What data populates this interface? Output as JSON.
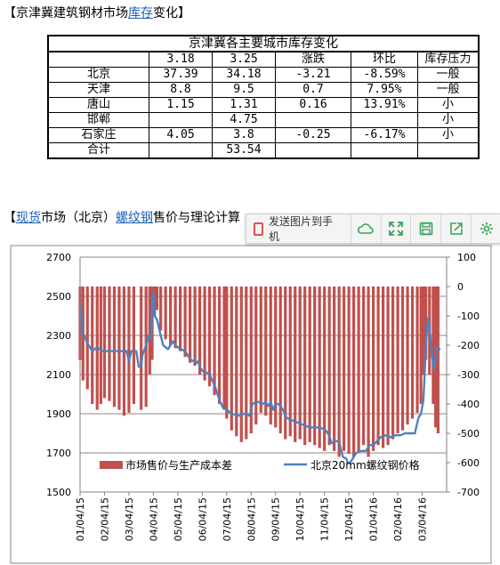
{
  "heading1": {
    "prefix": "【京津冀建筑钢材市场",
    "link": "库存",
    "suffix": "变化】"
  },
  "table": {
    "title": "京津冀各主要城市库存变化",
    "headers": [
      "",
      "3.18",
      "3.25",
      "涨跌",
      "环比",
      "库存压力"
    ],
    "rows": [
      [
        "北京",
        "37.39",
        "34.18",
        "-3.21",
        "-8.59%",
        "一般"
      ],
      [
        "天津",
        "8.8",
        "9.5",
        "0.7",
        "7.95%",
        "一般"
      ],
      [
        "唐山",
        "1.15",
        "1.31",
        "0.16",
        "13.91%",
        "小"
      ],
      [
        "邯郸",
        "",
        "4.75",
        "",
        "",
        "小"
      ],
      [
        "石家庄",
        "4.05",
        "3.8",
        "-0.25",
        "-6.17%",
        "小"
      ],
      [
        "合计",
        "",
        "53.54",
        "",
        "",
        ""
      ]
    ]
  },
  "heading2": {
    "p1": "【",
    "l1": "现货",
    "p2": "市场（北京）",
    "l2": "螺纹钢",
    "p3": "售价与理论计算"
  },
  "toolbar": {
    "send_label": "发送图片到手机",
    "icons": [
      "cloud-icon",
      "fullscreen-icon",
      "save-icon",
      "share-icon",
      "settings-icon"
    ]
  },
  "chart_data": {
    "type": "bar-line-combo",
    "x_ticks": [
      "01/04/15",
      "02/04/15",
      "03/04/15",
      "04/04/15",
      "05/04/15",
      "06/04/15",
      "07/04/15",
      "08/04/15",
      "09/04/15",
      "10/04/15",
      "11/04/15",
      "12/04/15",
      "01/04/16",
      "02/04/16",
      "03/04/16"
    ],
    "y_left": {
      "ylim": [
        1500,
        2700
      ],
      "ticks": [
        2700,
        2500,
        2300,
        2100,
        1900,
        1700,
        1500
      ]
    },
    "y_right": {
      "ylim": [
        -700,
        100
      ],
      "ticks": [
        100,
        0,
        -100,
        -200,
        -300,
        -400,
        -500,
        -600,
        -700
      ]
    },
    "bar_series": {
      "name": "市场售价与生产成本差",
      "color": "#c0504d",
      "axis": "right",
      "points": [
        [
          0,
          -250
        ],
        [
          0.12,
          -320
        ],
        [
          0.3,
          -350
        ],
        [
          0.5,
          -400
        ],
        [
          0.7,
          -420
        ],
        [
          0.85,
          -400
        ],
        [
          1,
          -380
        ],
        [
          1.2,
          -390
        ],
        [
          1.4,
          -410
        ],
        [
          1.6,
          -420
        ],
        [
          1.8,
          -440
        ],
        [
          2,
          -430
        ],
        [
          2.2,
          -400
        ],
        [
          2.5,
          -420
        ],
        [
          2.7,
          -410
        ],
        [
          2.85,
          -300
        ],
        [
          2.95,
          -250
        ],
        [
          3.05,
          -100
        ],
        [
          3.15,
          -80
        ],
        [
          3.3,
          -150
        ],
        [
          3.5,
          -180
        ],
        [
          3.7,
          -200
        ],
        [
          3.9,
          -210
        ],
        [
          4.1,
          -220
        ],
        [
          4.3,
          -240
        ],
        [
          4.5,
          -260
        ],
        [
          4.7,
          -270
        ],
        [
          4.9,
          -300
        ],
        [
          5.1,
          -320
        ],
        [
          5.3,
          -340
        ],
        [
          5.5,
          -370
        ],
        [
          5.7,
          -400
        ],
        [
          5.9,
          -420
        ],
        [
          6,
          -450
        ],
        [
          6.2,
          -490
        ],
        [
          6.4,
          -510
        ],
        [
          6.6,
          -530
        ],
        [
          6.8,
          -520
        ],
        [
          7,
          -500
        ],
        [
          7.2,
          -470
        ],
        [
          7.4,
          -430
        ],
        [
          7.6,
          -440
        ],
        [
          7.8,
          -470
        ],
        [
          8,
          -480
        ],
        [
          8.2,
          -500
        ],
        [
          8.4,
          -520
        ],
        [
          8.6,
          -510
        ],
        [
          8.8,
          -530
        ],
        [
          9,
          -520
        ],
        [
          9.2,
          -540
        ],
        [
          9.4,
          -530
        ],
        [
          9.6,
          -540
        ],
        [
          9.8,
          -550
        ],
        [
          10,
          -560
        ],
        [
          10.2,
          -540
        ],
        [
          10.4,
          -560
        ],
        [
          10.6,
          -580
        ],
        [
          10.8,
          -560
        ],
        [
          11,
          -570
        ],
        [
          11.2,
          -580
        ],
        [
          11.4,
          -560
        ],
        [
          11.6,
          -540
        ],
        [
          11.8,
          -580
        ],
        [
          12,
          -560
        ],
        [
          12.2,
          -540
        ],
        [
          12.4,
          -550
        ],
        [
          12.6,
          -540
        ],
        [
          12.8,
          -520
        ],
        [
          13,
          -500
        ],
        [
          13.2,
          -490
        ],
        [
          13.4,
          -470
        ],
        [
          13.6,
          -450
        ],
        [
          13.8,
          -430
        ],
        [
          13.95,
          -400
        ],
        [
          14.05,
          -300
        ],
        [
          14.15,
          -250
        ],
        [
          14.3,
          -300
        ],
        [
          14.45,
          -400
        ],
        [
          14.55,
          -480
        ],
        [
          14.65,
          -500
        ]
      ]
    },
    "line_series": {
      "name": "北京20mm螺纹钢价格",
      "color": "#4f81bd",
      "axis": "left",
      "points": [
        [
          0,
          2400
        ],
        [
          0.02,
          2460
        ],
        [
          0.1,
          2320
        ],
        [
          0.3,
          2260
        ],
        [
          0.5,
          2220
        ],
        [
          0.7,
          2240
        ],
        [
          0.9,
          2220
        ],
        [
          1.1,
          2220
        ],
        [
          1.5,
          2220
        ],
        [
          1.9,
          2220
        ],
        [
          2,
          2170
        ],
        [
          2.1,
          2220
        ],
        [
          2.3,
          2220
        ],
        [
          2.4,
          2140
        ],
        [
          2.5,
          2140
        ],
        [
          2.55,
          2200
        ],
        [
          2.7,
          2250
        ],
        [
          2.8,
          2300
        ],
        [
          2.9,
          2280
        ],
        [
          2.95,
          2460
        ],
        [
          3.0,
          2520
        ],
        [
          3.05,
          2400
        ],
        [
          3.15,
          2380
        ],
        [
          3.3,
          2300
        ],
        [
          3.4,
          2250
        ],
        [
          3.5,
          2240
        ],
        [
          3.6,
          2230
        ],
        [
          3.7,
          2250
        ],
        [
          3.8,
          2270
        ],
        [
          3.9,
          2250
        ],
        [
          4.0,
          2240
        ],
        [
          4.1,
          2230
        ],
        [
          4.3,
          2220
        ],
        [
          4.5,
          2180
        ],
        [
          4.6,
          2170
        ],
        [
          4.7,
          2170
        ],
        [
          4.8,
          2160
        ],
        [
          4.85,
          2170
        ],
        [
          4.9,
          2140
        ],
        [
          5.0,
          2120
        ],
        [
          5.1,
          2110
        ],
        [
          5.2,
          2110
        ],
        [
          5.3,
          2100
        ],
        [
          5.45,
          2060
        ],
        [
          5.55,
          2030
        ],
        [
          5.7,
          1970
        ],
        [
          5.85,
          1930
        ],
        [
          6,
          1920
        ],
        [
          6.2,
          1900
        ],
        [
          6.5,
          1890
        ],
        [
          6.7,
          1900
        ],
        [
          6.9,
          1890
        ],
        [
          7.0,
          1910
        ],
        [
          7.05,
          1950
        ],
        [
          7.2,
          1960
        ],
        [
          7.3,
          1960
        ],
        [
          7.5,
          1950
        ],
        [
          7.6,
          1960
        ],
        [
          7.7,
          1940
        ],
        [
          7.8,
          1960
        ],
        [
          7.9,
          1920
        ],
        [
          8.0,
          1950
        ],
        [
          8.1,
          1950
        ],
        [
          8.2,
          1940
        ],
        [
          8.35,
          1910
        ],
        [
          8.4,
          1890
        ],
        [
          8.45,
          1880
        ],
        [
          8.6,
          1870
        ],
        [
          8.8,
          1860
        ],
        [
          9.0,
          1850
        ],
        [
          9.2,
          1840
        ],
        [
          9.4,
          1830
        ],
        [
          9.6,
          1830
        ],
        [
          9.8,
          1830
        ],
        [
          10,
          1820
        ],
        [
          10.15,
          1800
        ],
        [
          10.3,
          1750
        ],
        [
          10.45,
          1760
        ],
        [
          10.6,
          1760
        ],
        [
          10.75,
          1680
        ],
        [
          10.9,
          1670
        ],
        [
          10.95,
          1650
        ],
        [
          11.05,
          1650
        ],
        [
          11.15,
          1670
        ],
        [
          11.3,
          1700
        ],
        [
          11.5,
          1710
        ],
        [
          11.7,
          1710
        ],
        [
          11.85,
          1740
        ],
        [
          12,
          1740
        ],
        [
          12.15,
          1760
        ],
        [
          12.3,
          1780
        ],
        [
          12.5,
          1790
        ],
        [
          12.7,
          1780
        ],
        [
          12.9,
          1790
        ],
        [
          13.1,
          1790
        ],
        [
          13.3,
          1800
        ],
        [
          13.5,
          1800
        ],
        [
          13.7,
          1800
        ],
        [
          13.85,
          1880
        ],
        [
          13.95,
          1900
        ],
        [
          14.05,
          1970
        ],
        [
          14.1,
          2100
        ],
        [
          14.15,
          2250
        ],
        [
          14.2,
          2330
        ],
        [
          14.25,
          2390
        ],
        [
          14.35,
          2280
        ],
        [
          14.4,
          2200
        ],
        [
          14.45,
          2150
        ],
        [
          14.5,
          2130
        ],
        [
          14.55,
          2180
        ],
        [
          14.6,
          2230
        ],
        [
          14.65,
          2240
        ],
        [
          14.7,
          2230
        ],
        [
          14.75,
          2230
        ]
      ]
    }
  }
}
